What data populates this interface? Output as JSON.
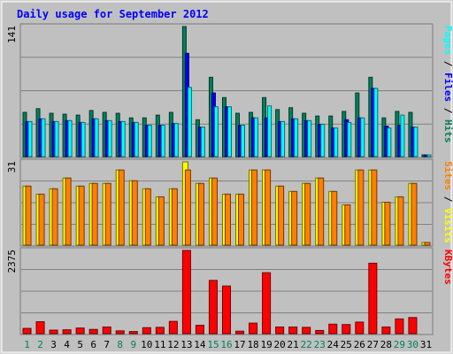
{
  "chart_data": {
    "type": "bar",
    "title": "Daily usage for September 2012",
    "x": [
      "1",
      "2",
      "3",
      "4",
      "5",
      "6",
      "7",
      "8",
      "9",
      "10",
      "11",
      "12",
      "13",
      "14",
      "15",
      "16",
      "17",
      "18",
      "19",
      "20",
      "21",
      "22",
      "23",
      "24",
      "25",
      "26",
      "27",
      "28",
      "29",
      "30",
      "31"
    ],
    "weekend_days": [
      "1",
      "2",
      "8",
      "9",
      "15",
      "16",
      "22",
      "23",
      "29",
      "30"
    ],
    "panels": [
      {
        "id": "hits",
        "ymax_label": "141",
        "ymax": 141,
        "side_label": [
          "Pages",
          "Files",
          "Hits"
        ],
        "series": [
          {
            "name": "Hits",
            "color": "#00805c",
            "values": [
              48,
              52,
              47,
              46,
              45,
              50,
              48,
              47,
              42,
              42,
              45,
              48,
              141,
              40,
              86,
              64,
              47,
              48,
              64,
              51,
              53,
              47,
              44,
              44,
              49,
              69,
              86,
              42,
              49,
              48,
              1
            ]
          },
          {
            "name": "Files",
            "color": "#0000ff",
            "values": [
              38,
              41,
              38,
              39,
              37,
              41,
              39,
              38,
              37,
              34,
              34,
              36,
              112,
              32,
              69,
              54,
              34,
              42,
              42,
              38,
              41,
              39,
              35,
              31,
              40,
              42,
              74,
              33,
              34,
              32,
              1
            ]
          },
          {
            "name": "Pages",
            "color": "#00ffff",
            "values": [
              38,
              41,
              38,
              39,
              37,
              41,
              39,
              38,
              37,
              34,
              34,
              36,
              75,
              32,
              54,
              54,
              34,
              42,
              55,
              38,
              41,
              39,
              35,
              31,
              37,
              42,
              74,
              31,
              45,
              32,
              1
            ]
          }
        ]
      },
      {
        "id": "visits",
        "ymax_label": "31",
        "ymax": 31,
        "side_label": [
          "Sites",
          "Visits"
        ],
        "series": [
          {
            "name": "Visits",
            "color": "#ffff00",
            "values": [
              22,
              19,
              21,
              25,
              22,
              23,
              23,
              28,
              24,
              21,
              18,
              21,
              31,
              23,
              25,
              19,
              19,
              28,
              28,
              22,
              20,
              23,
              25,
              20,
              15,
              28,
              28,
              16,
              18,
              23,
              1
            ]
          },
          {
            "name": "Sites",
            "color": "#ff8000",
            "values": [
              22,
              19,
              21,
              25,
              22,
              23,
              23,
              28,
              24,
              21,
              18,
              21,
              28,
              23,
              25,
              19,
              19,
              28,
              28,
              22,
              20,
              23,
              25,
              20,
              15,
              28,
              28,
              16,
              18,
              23,
              1
            ]
          }
        ]
      },
      {
        "id": "kbytes",
        "ymax_label": "2375",
        "ymax": 2375,
        "side_label": [
          "KBytes"
        ],
        "series": [
          {
            "name": "KBytes",
            "color": "#ff0000",
            "values": [
              150,
              340,
              100,
              110,
              160,
              120,
              190,
              80,
              60,
              170,
              180,
              350,
              2375,
              240,
              1520,
              1360,
              70,
              300,
              1740,
              190,
              190,
              180,
              90,
              270,
              260,
              330,
              2010,
              190,
              420,
              460,
              0
            ]
          }
        ]
      }
    ],
    "colors": {
      "background": "#c0c0c0",
      "frame": "#e8e8e8",
      "title": "#0000ff",
      "grid": "#808080",
      "weekend_label": "#00805c",
      "weekday_label": "#000000"
    }
  }
}
